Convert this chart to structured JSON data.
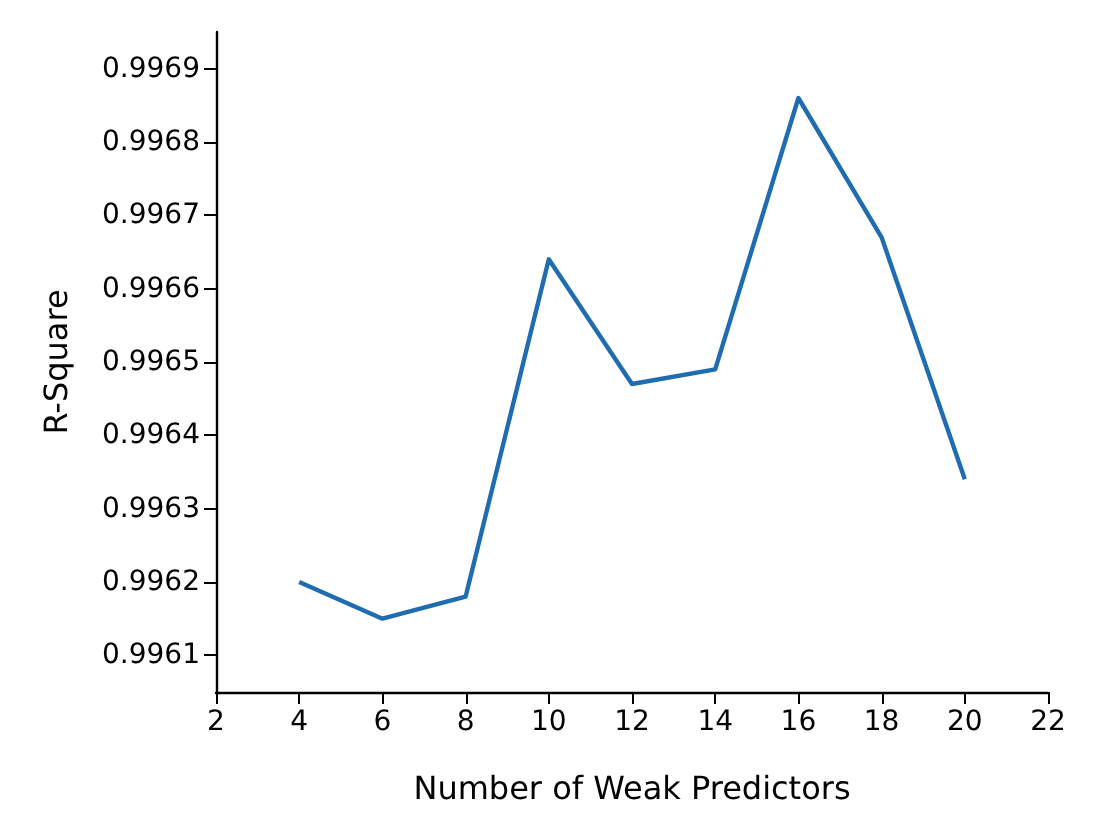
{
  "chart_data": {
    "type": "line",
    "xlabel": "Number of Weak Predictors",
    "ylabel": "R-Square",
    "x": [
      4,
      6,
      8,
      10,
      12,
      14,
      16,
      18,
      20
    ],
    "series": [
      {
        "color": "#1f6db0",
        "values": [
          0.9962,
          0.99615,
          0.99618,
          0.99664,
          0.99647,
          0.99649,
          0.99686,
          0.99667,
          0.99634
        ]
      }
    ],
    "xlim": [
      2,
      22
    ],
    "xticks": [
      2,
      4,
      6,
      8,
      10,
      12,
      14,
      16,
      18,
      20,
      22
    ],
    "ylim": [
      0.99605,
      0.99695
    ],
    "yticks": [
      0.9961,
      0.9962,
      0.9963,
      0.9964,
      0.9965,
      0.9966,
      0.9967,
      0.9968,
      0.9969
    ],
    "grid": false,
    "marker": "none",
    "line_style": "solid"
  }
}
